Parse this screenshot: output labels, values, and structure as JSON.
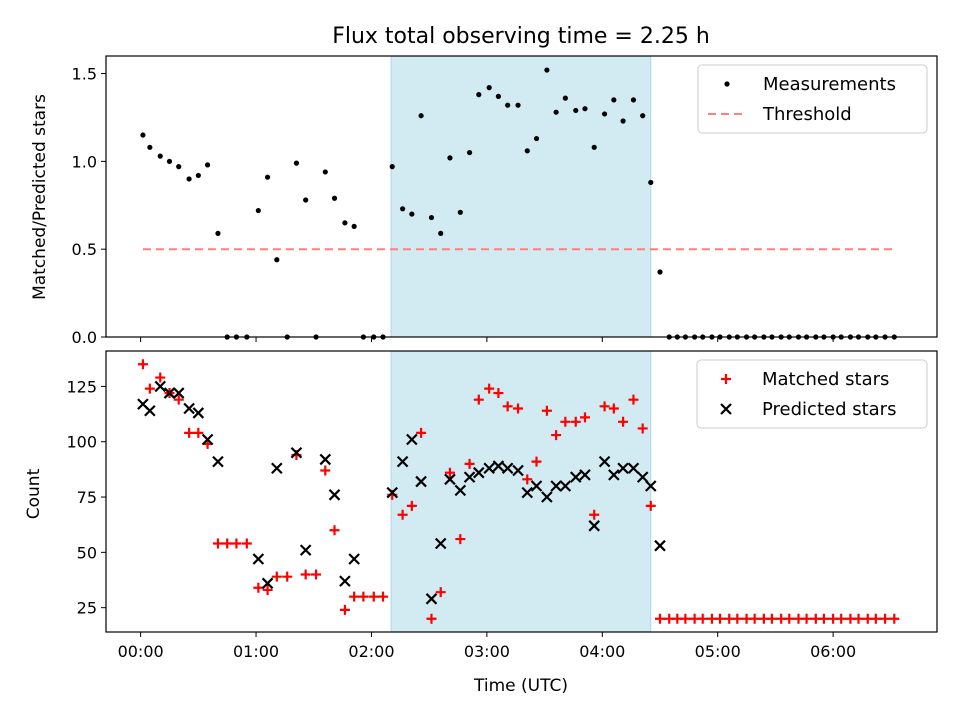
{
  "title": "Flux total observing time = 2.25 h",
  "xlabel": "Time (UTC)",
  "colors": {
    "measurement": "#000000",
    "threshold": "#ff7f7f",
    "matched": "#ff0000",
    "predicted": "#000000",
    "shade": "#add8e6"
  },
  "chart_data": [
    {
      "type": "scatter",
      "panel": "top",
      "ylabel": "Matched/Predicted stars",
      "xlim": [
        -0.3,
        6.9
      ],
      "ylim": [
        0,
        1.6
      ],
      "yticks": [
        0.0,
        0.5,
        1.0,
        1.5
      ],
      "ytick_labels": [
        "0.0",
        "0.5",
        "1.0",
        "1.5"
      ],
      "xticks": [
        0,
        1,
        2,
        3,
        4,
        5,
        6
      ],
      "shaded_x": [
        2.17,
        4.42
      ],
      "legend_position": "top-right",
      "series": [
        {
          "name": "Measurements",
          "marker": "dot",
          "points": [
            [
              0.02,
              1.15
            ],
            [
              0.08,
              1.08
            ],
            [
              0.17,
              1.03
            ],
            [
              0.25,
              1.0
            ],
            [
              0.33,
              0.97
            ],
            [
              0.42,
              0.9
            ],
            [
              0.5,
              0.92
            ],
            [
              0.58,
              0.98
            ],
            [
              0.67,
              0.59
            ],
            [
              0.75,
              0.0
            ],
            [
              0.83,
              0.0
            ],
            [
              0.92,
              0.0
            ],
            [
              1.02,
              0.72
            ],
            [
              1.1,
              0.91
            ],
            [
              1.18,
              0.44
            ],
            [
              1.27,
              0.0
            ],
            [
              1.35,
              0.99
            ],
            [
              1.43,
              0.78
            ],
            [
              1.52,
              0.0
            ],
            [
              1.6,
              0.94
            ],
            [
              1.68,
              0.79
            ],
            [
              1.77,
              0.65
            ],
            [
              1.85,
              0.63
            ],
            [
              1.93,
              0.0
            ],
            [
              2.02,
              0.0
            ],
            [
              2.1,
              0.0
            ],
            [
              2.18,
              0.97
            ],
            [
              2.27,
              0.73
            ],
            [
              2.35,
              0.7
            ],
            [
              2.43,
              1.26
            ],
            [
              2.52,
              0.68
            ],
            [
              2.6,
              0.59
            ],
            [
              2.68,
              1.02
            ],
            [
              2.77,
              0.71
            ],
            [
              2.85,
              1.05
            ],
            [
              2.93,
              1.38
            ],
            [
              3.02,
              1.42
            ],
            [
              3.1,
              1.37
            ],
            [
              3.18,
              1.32
            ],
            [
              3.27,
              1.32
            ],
            [
              3.35,
              1.06
            ],
            [
              3.43,
              1.13
            ],
            [
              3.52,
              1.52
            ],
            [
              3.6,
              1.28
            ],
            [
              3.68,
              1.36
            ],
            [
              3.77,
              1.29
            ],
            [
              3.85,
              1.3
            ],
            [
              3.93,
              1.08
            ],
            [
              4.02,
              1.27
            ],
            [
              4.1,
              1.35
            ],
            [
              4.18,
              1.23
            ],
            [
              4.27,
              1.35
            ],
            [
              4.35,
              1.26
            ],
            [
              4.42,
              0.88
            ],
            [
              4.5,
              0.37
            ],
            [
              4.58,
              0.0
            ],
            [
              4.65,
              0.0
            ],
            [
              4.72,
              0.0
            ],
            [
              4.8,
              0.0
            ],
            [
              4.87,
              0.0
            ],
            [
              4.95,
              0.0
            ],
            [
              5.02,
              0.0
            ],
            [
              5.1,
              0.0
            ],
            [
              5.17,
              0.0
            ],
            [
              5.25,
              0.0
            ],
            [
              5.32,
              0.0
            ],
            [
              5.4,
              0.0
            ],
            [
              5.47,
              0.0
            ],
            [
              5.55,
              0.0
            ],
            [
              5.62,
              0.0
            ],
            [
              5.7,
              0.0
            ],
            [
              5.77,
              0.0
            ],
            [
              5.85,
              0.0
            ],
            [
              5.92,
              0.0
            ],
            [
              6.0,
              0.0
            ],
            [
              6.07,
              0.0
            ],
            [
              6.15,
              0.0
            ],
            [
              6.22,
              0.0
            ],
            [
              6.3,
              0.0
            ],
            [
              6.37,
              0.0
            ],
            [
              6.45,
              0.0
            ],
            [
              6.53,
              0.0
            ]
          ]
        },
        {
          "name": "Threshold",
          "marker": "dashed-line",
          "points": [
            [
              0.02,
              0.5
            ],
            [
              6.53,
              0.5
            ]
          ]
        }
      ]
    },
    {
      "type": "scatter",
      "panel": "bottom",
      "ylabel": "Count",
      "xlim": [
        -0.3,
        6.9
      ],
      "ylim": [
        14,
        141
      ],
      "yticks": [
        25,
        50,
        75,
        100,
        125
      ],
      "xticks": [
        0,
        1,
        2,
        3,
        4,
        5,
        6
      ],
      "xtick_labels": [
        "00:00",
        "01:00",
        "02:00",
        "03:00",
        "04:00",
        "05:00",
        "06:00"
      ],
      "shaded_x": [
        2.17,
        4.42
      ],
      "legend_position": "top-right",
      "series": [
        {
          "name": "Matched stars",
          "marker": "plus",
          "points": [
            [
              0.02,
              135
            ],
            [
              0.08,
              124
            ],
            [
              0.17,
              129
            ],
            [
              0.25,
              122
            ],
            [
              0.33,
              119
            ],
            [
              0.42,
              104
            ],
            [
              0.5,
              104
            ],
            [
              0.58,
              99
            ],
            [
              0.67,
              54
            ],
            [
              0.75,
              54
            ],
            [
              0.83,
              54
            ],
            [
              0.92,
              54
            ],
            [
              1.02,
              34
            ],
            [
              1.1,
              33
            ],
            [
              1.18,
              39
            ],
            [
              1.27,
              39
            ],
            [
              1.35,
              94
            ],
            [
              1.43,
              40
            ],
            [
              1.52,
              40
            ],
            [
              1.6,
              87
            ],
            [
              1.68,
              60
            ],
            [
              1.77,
              24
            ],
            [
              1.85,
              30
            ],
            [
              1.93,
              30
            ],
            [
              2.02,
              30
            ],
            [
              2.1,
              30
            ],
            [
              2.18,
              76
            ],
            [
              2.27,
              67
            ],
            [
              2.35,
              71
            ],
            [
              2.43,
              104
            ],
            [
              2.52,
              20
            ],
            [
              2.6,
              32
            ],
            [
              2.68,
              86
            ],
            [
              2.77,
              56
            ],
            [
              2.85,
              90
            ],
            [
              2.93,
              119
            ],
            [
              3.02,
              124
            ],
            [
              3.1,
              122
            ],
            [
              3.18,
              116
            ],
            [
              3.27,
              115
            ],
            [
              3.35,
              83
            ],
            [
              3.43,
              91
            ],
            [
              3.52,
              114
            ],
            [
              3.6,
              103
            ],
            [
              3.68,
              109
            ],
            [
              3.77,
              109
            ],
            [
              3.85,
              111
            ],
            [
              3.93,
              67
            ],
            [
              4.02,
              116
            ],
            [
              4.1,
              115
            ],
            [
              4.18,
              109
            ],
            [
              4.27,
              119
            ],
            [
              4.35,
              106
            ],
            [
              4.42,
              71
            ],
            [
              4.5,
              20
            ],
            [
              4.58,
              20
            ],
            [
              4.65,
              20
            ],
            [
              4.72,
              20
            ],
            [
              4.8,
              20
            ],
            [
              4.87,
              20
            ],
            [
              4.95,
              20
            ],
            [
              5.02,
              20
            ],
            [
              5.1,
              20
            ],
            [
              5.17,
              20
            ],
            [
              5.25,
              20
            ],
            [
              5.32,
              20
            ],
            [
              5.4,
              20
            ],
            [
              5.47,
              20
            ],
            [
              5.55,
              20
            ],
            [
              5.62,
              20
            ],
            [
              5.7,
              20
            ],
            [
              5.77,
              20
            ],
            [
              5.85,
              20
            ],
            [
              5.92,
              20
            ],
            [
              6.0,
              20
            ],
            [
              6.07,
              20
            ],
            [
              6.15,
              20
            ],
            [
              6.22,
              20
            ],
            [
              6.3,
              20
            ],
            [
              6.37,
              20
            ],
            [
              6.45,
              20
            ],
            [
              6.53,
              20
            ]
          ]
        },
        {
          "name": "Predicted stars",
          "marker": "x",
          "points": [
            [
              0.02,
              117
            ],
            [
              0.08,
              114
            ],
            [
              0.17,
              125
            ],
            [
              0.25,
              122
            ],
            [
              0.33,
              122
            ],
            [
              0.42,
              115
            ],
            [
              0.5,
              113
            ],
            [
              0.58,
              101
            ],
            [
              0.67,
              91
            ],
            [
              1.02,
              47
            ],
            [
              1.1,
              36
            ],
            [
              1.18,
              88
            ],
            [
              1.35,
              95
            ],
            [
              1.43,
              51
            ],
            [
              1.6,
              92
            ],
            [
              1.68,
              76
            ],
            [
              1.77,
              37
            ],
            [
              1.85,
              47
            ],
            [
              2.18,
              77
            ],
            [
              2.27,
              91
            ],
            [
              2.35,
              101
            ],
            [
              2.43,
              82
            ],
            [
              2.52,
              29
            ],
            [
              2.6,
              54
            ],
            [
              2.68,
              83
            ],
            [
              2.77,
              78
            ],
            [
              2.85,
              84
            ],
            [
              2.93,
              86
            ],
            [
              3.02,
              88
            ],
            [
              3.1,
              89
            ],
            [
              3.18,
              88
            ],
            [
              3.27,
              87
            ],
            [
              3.35,
              77
            ],
            [
              3.43,
              80
            ],
            [
              3.52,
              75
            ],
            [
              3.6,
              80
            ],
            [
              3.68,
              80
            ],
            [
              3.77,
              84
            ],
            [
              3.85,
              85
            ],
            [
              3.93,
              62
            ],
            [
              4.02,
              91
            ],
            [
              4.1,
              85
            ],
            [
              4.18,
              88
            ],
            [
              4.27,
              88
            ],
            [
              4.35,
              84
            ],
            [
              4.42,
              80
            ],
            [
              4.5,
              53
            ]
          ]
        }
      ]
    }
  ]
}
